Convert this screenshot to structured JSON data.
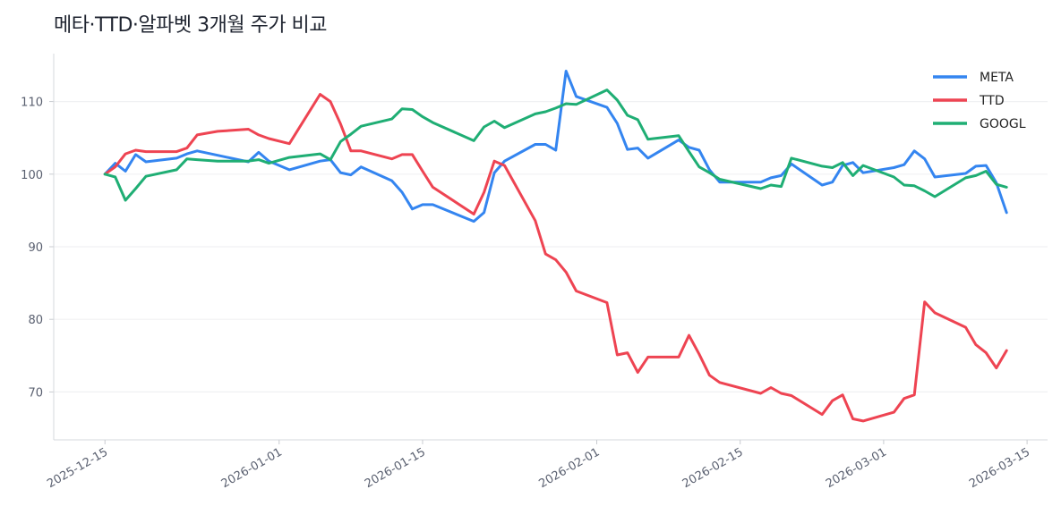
{
  "chart_data": {
    "type": "line",
    "title": "메타·TTD·알파벳 3개월 주가 비교",
    "xlabel": "",
    "ylabel": "",
    "ylim": [
      63.4,
      116.6
    ],
    "xlim": [
      "2025-12-10",
      "2026-03-17"
    ],
    "grid": "horizontal",
    "legend_position": "top-right",
    "yticks": [
      70,
      80,
      90,
      100,
      110
    ],
    "xticks": [
      "2025-12-15",
      "2026-01-01",
      "2026-01-15",
      "2026-02-01",
      "2026-02-15",
      "2026-03-01",
      "2026-03-15"
    ],
    "x": [
      "2025-12-15",
      "2025-12-16",
      "2025-12-17",
      "2025-12-18",
      "2025-12-19",
      "2025-12-22",
      "2025-12-23",
      "2025-12-24",
      "2025-12-26",
      "2025-12-29",
      "2025-12-30",
      "2025-12-31",
      "2026-01-02",
      "2026-01-05",
      "2026-01-06",
      "2026-01-07",
      "2026-01-08",
      "2026-01-09",
      "2026-01-12",
      "2026-01-13",
      "2026-01-14",
      "2026-01-15",
      "2026-01-16",
      "2026-01-20",
      "2026-01-21",
      "2026-01-22",
      "2026-01-23",
      "2026-01-26",
      "2026-01-27",
      "2026-01-28",
      "2026-01-29",
      "2026-01-30",
      "2026-02-02",
      "2026-02-03",
      "2026-02-04",
      "2026-02-05",
      "2026-02-06",
      "2026-02-09",
      "2026-02-10",
      "2026-02-11",
      "2026-02-12",
      "2026-02-13",
      "2026-02-17",
      "2026-02-18",
      "2026-02-19",
      "2026-02-20",
      "2026-02-23",
      "2026-02-24",
      "2026-02-25",
      "2026-02-26",
      "2026-02-27",
      "2026-03-02",
      "2026-03-03",
      "2026-03-04",
      "2026-03-05",
      "2026-03-06",
      "2026-03-09",
      "2026-03-10",
      "2026-03-11",
      "2026-03-12",
      "2026-03-13"
    ],
    "series": [
      {
        "name": "META",
        "color": "#3485f0",
        "values": [
          100,
          101.5,
          100.4,
          102.7,
          101.7,
          102.2,
          102.8,
          103.2,
          102.6,
          101.7,
          103.0,
          101.8,
          100.6,
          101.8,
          102.0,
          100.2,
          99.9,
          101.0,
          99.1,
          97.5,
          95.2,
          95.8,
          95.8,
          93.5,
          94.7,
          100.2,
          101.8,
          104.1,
          104.1,
          103.3,
          114.2,
          110.7,
          109.2,
          107.0,
          103.4,
          103.6,
          102.2,
          104.7,
          103.7,
          103.3,
          100.6,
          98.9,
          98.9,
          99.5,
          99.8,
          101.4,
          98.5,
          98.9,
          101.2,
          101.6,
          100.2,
          100.9,
          101.3,
          103.2,
          102.1,
          99.6,
          100.1,
          101.1,
          101.2,
          98.8,
          94.7
        ]
      },
      {
        "name": "TTD",
        "color": "#ee4452",
        "values": [
          100,
          101.0,
          102.8,
          103.3,
          103.1,
          103.1,
          103.6,
          105.4,
          105.9,
          106.2,
          105.4,
          104.9,
          104.2,
          111.0,
          110.0,
          106.9,
          103.2,
          103.2,
          102.1,
          102.7,
          102.7,
          100.4,
          98.2,
          94.5,
          97.5,
          101.8,
          101.2,
          93.6,
          89.0,
          88.2,
          86.5,
          83.9,
          82.3,
          75.1,
          75.4,
          72.7,
          74.8,
          74.8,
          77.8,
          75.2,
          72.3,
          71.3,
          69.8,
          70.6,
          69.8,
          69.5,
          66.9,
          68.8,
          69.6,
          66.3,
          66.0,
          67.2,
          69.1,
          69.6,
          82.4,
          80.9,
          78.9,
          76.5,
          75.4,
          73.3,
          75.7
        ]
      },
      {
        "name": "GOOGL",
        "color": "#1fae74",
        "values": [
          100,
          99.6,
          96.4,
          98.0,
          99.7,
          100.6,
          102.1,
          102.0,
          101.8,
          101.8,
          102.0,
          101.5,
          102.3,
          102.8,
          102.0,
          104.5,
          105.5,
          106.6,
          107.6,
          109.0,
          108.9,
          107.9,
          107.1,
          104.6,
          106.5,
          107.3,
          106.4,
          108.3,
          108.6,
          109.1,
          109.7,
          109.6,
          111.6,
          110.2,
          108.1,
          107.5,
          104.8,
          105.3,
          103.1,
          101.0,
          100.2,
          99.3,
          98.0,
          98.5,
          98.3,
          102.2,
          101.1,
          100.9,
          101.6,
          99.8,
          101.2,
          99.6,
          98.5,
          98.4,
          97.7,
          96.9,
          99.5,
          99.8,
          100.4,
          98.6,
          98.2
        ]
      }
    ]
  }
}
